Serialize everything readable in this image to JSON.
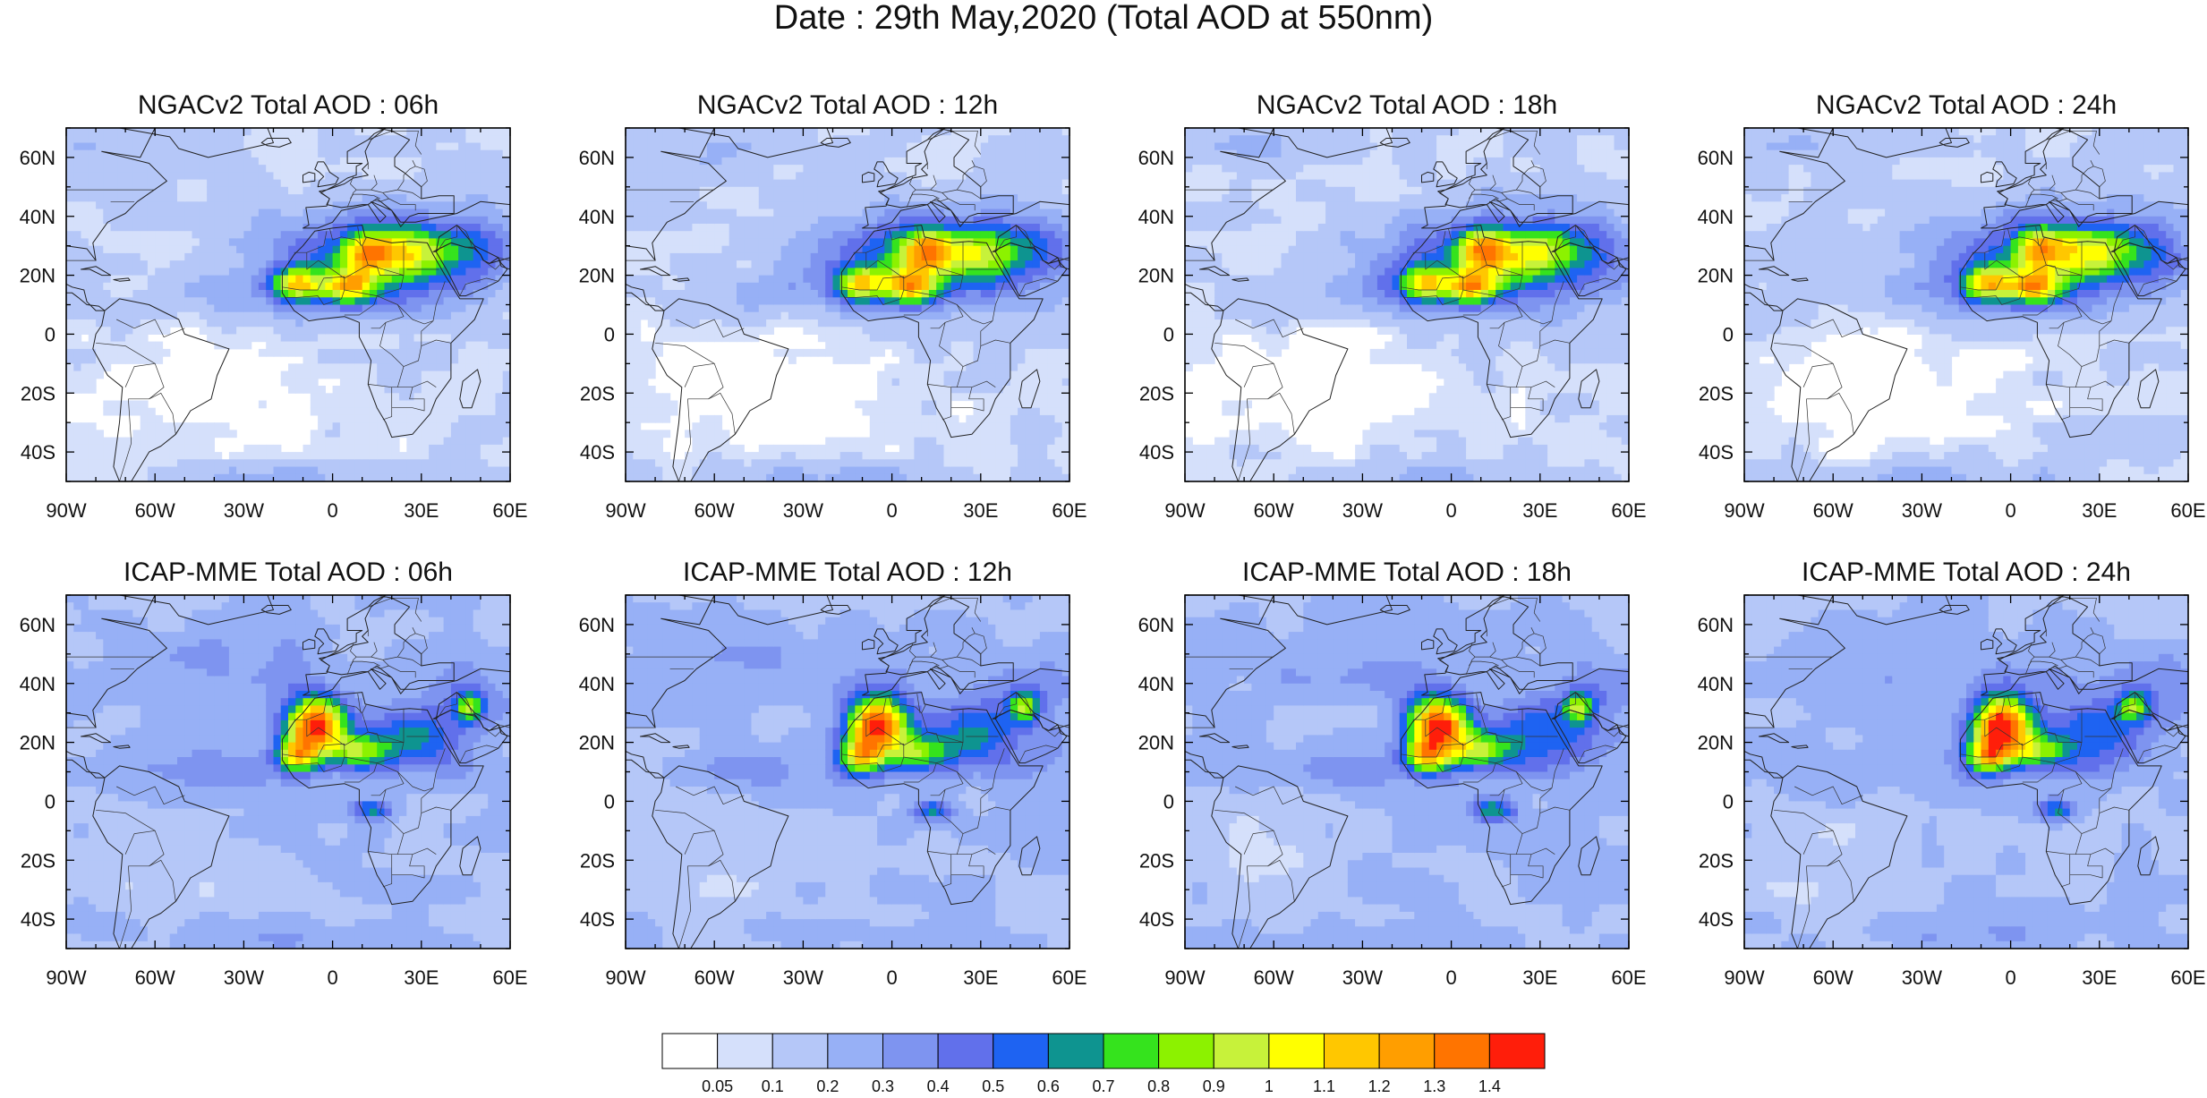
{
  "page_title": "Date : 29th May,2020 (Total AOD at 550nm)",
  "axes": {
    "lon_ticks": [
      "90W",
      "60W",
      "30W",
      "0",
      "30E",
      "60E"
    ],
    "lat_ticks": [
      "60N",
      "40N",
      "20N",
      "0",
      "20S",
      "40S"
    ],
    "lon_values": [
      -90,
      -60,
      -30,
      0,
      30,
      60
    ],
    "lat_values": [
      60,
      40,
      20,
      0,
      -20,
      -40
    ],
    "lon_range": [
      -90,
      60
    ],
    "lat_range": [
      -50,
      70
    ]
  },
  "panels": [
    {
      "title": "NGACv2 Total AOD : 06h",
      "model": "NGACv2",
      "hour": 6
    },
    {
      "title": "NGACv2 Total AOD : 12h",
      "model": "NGACv2",
      "hour": 12
    },
    {
      "title": "NGACv2 Total AOD : 18h",
      "model": "NGACv2",
      "hour": 18
    },
    {
      "title": "NGACv2 Total AOD : 24h",
      "model": "NGACv2",
      "hour": 24
    },
    {
      "title": "ICAP-MME Total AOD : 06h",
      "model": "ICAP-MME",
      "hour": 6
    },
    {
      "title": "ICAP-MME Total AOD : 12h",
      "model": "ICAP-MME",
      "hour": 12
    },
    {
      "title": "ICAP-MME Total AOD : 18h",
      "model": "ICAP-MME",
      "hour": 18
    },
    {
      "title": "ICAP-MME Total AOD : 24h",
      "model": "ICAP-MME",
      "hour": 24
    }
  ],
  "colorbar": {
    "labels": [
      "0.05",
      "0.1",
      "0.2",
      "0.3",
      "0.4",
      "0.5",
      "0.6",
      "0.7",
      "0.8",
      "0.9",
      "1",
      "1.1",
      "1.2",
      "1.3",
      "1.4"
    ],
    "colors": [
      "#ffffff",
      "#d5e0fb",
      "#b5c7f8",
      "#97b0f6",
      "#7e94f0",
      "#6170eb",
      "#1e63f2",
      "#0e9490",
      "#35e31d",
      "#8cf200",
      "#c7f23a",
      "#ffff00",
      "#ffc700",
      "#ff9e00",
      "#ff7400",
      "#ff1e0a"
    ]
  }
}
